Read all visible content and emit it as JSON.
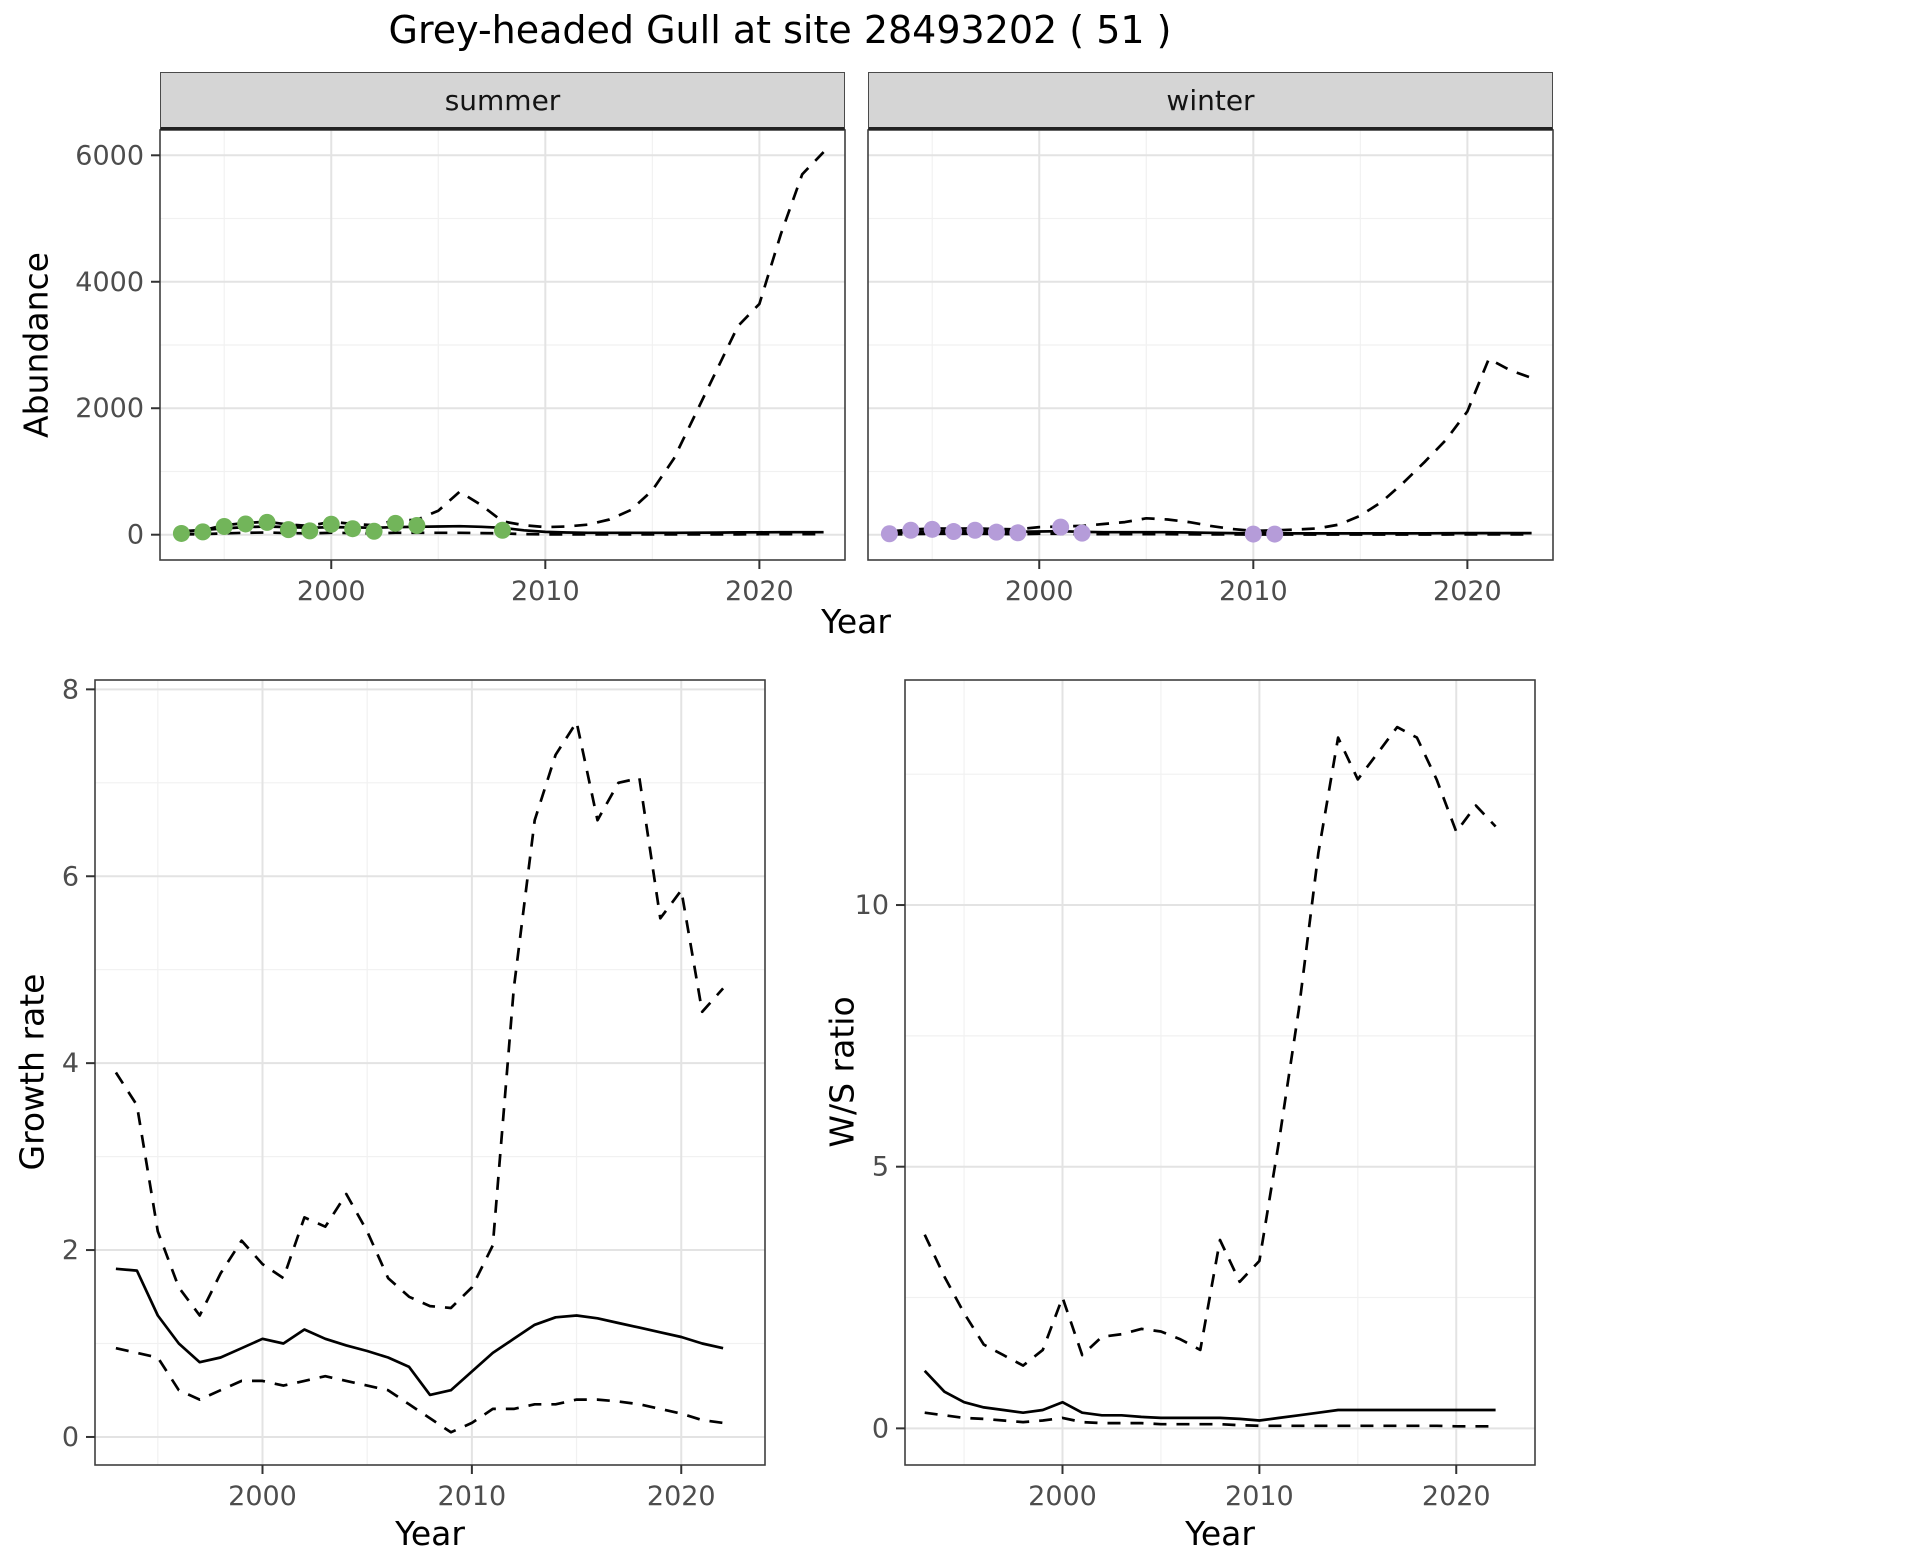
{
  "title": "Grey-headed Gull at site 28493202 ( 51 )",
  "colors": {
    "panel_bg": "#ffffff",
    "grid_major": "#e3e3e3",
    "grid_minor": "#f1f1f1",
    "panel_border": "#3f3f3f",
    "tick": "#333333",
    "tick_label": "#4d4d4d",
    "line": "#000000",
    "summer_points": "#72b55a",
    "winter_points": "#b59cd9",
    "strip_bg": "#d5d5d5"
  },
  "chart_data": [
    {
      "id": "abundance-summer",
      "type": "line",
      "facet_label": "summer",
      "xlabel": "Year",
      "ylabel": "Abundance",
      "xlim": [
        1992,
        2024
      ],
      "ylim": [
        -400,
        6400
      ],
      "xticks": [
        2000,
        2010,
        2020
      ],
      "yticks": [
        0,
        2000,
        4000,
        6000
      ],
      "grid": true,
      "legend": "none",
      "series": [
        {
          "name": "upper_ci",
          "style": "dashed",
          "color": "#000000",
          "x": [
            1993,
            1994,
            1995,
            1996,
            1997,
            1998,
            1999,
            2000,
            2001,
            2002,
            2003,
            2004,
            2005,
            2006,
            2007,
            2008,
            2009,
            2010,
            2011,
            2012,
            2013,
            2014,
            2015,
            2016,
            2017,
            2018,
            2019,
            2020,
            2021,
            2022,
            2023
          ],
          "y": [
            45,
            70,
            150,
            185,
            205,
            160,
            140,
            205,
            170,
            150,
            225,
            235,
            380,
            680,
            470,
            210,
            150,
            120,
            130,
            160,
            240,
            390,
            700,
            1200,
            1900,
            2600,
            3300,
            3650,
            4750,
            5700,
            6050
          ]
        },
        {
          "name": "lower_ci",
          "style": "dashed",
          "color": "#000000",
          "x": [
            1993,
            1994,
            1995,
            1996,
            1997,
            1998,
            1999,
            2000,
            2001,
            2002,
            2003,
            2004,
            2005,
            2006,
            2007,
            2008,
            2009,
            2010,
            2011,
            2012,
            2013,
            2014,
            2015,
            2016,
            2017,
            2018,
            2019,
            2020,
            2021,
            2022,
            2023
          ],
          "y": [
            5,
            10,
            20,
            30,
            35,
            25,
            20,
            30,
            25,
            20,
            30,
            30,
            30,
            30,
            25,
            20,
            10,
            5,
            5,
            5,
            5,
            5,
            5,
            5,
            5,
            5,
            5,
            8,
            10,
            10,
            10
          ]
        },
        {
          "name": "median_estimate",
          "style": "solid",
          "color": "#000000",
          "x": [
            1993,
            1994,
            1995,
            1996,
            1997,
            1998,
            1999,
            2000,
            2001,
            2002,
            2003,
            2004,
            2005,
            2006,
            2007,
            2008,
            2009,
            2010,
            2011,
            2012,
            2013,
            2014,
            2015,
            2016,
            2017,
            2018,
            2019,
            2020,
            2021,
            2022,
            2023
          ],
          "y": [
            55,
            75,
            100,
            120,
            130,
            120,
            110,
            120,
            115,
            110,
            120,
            125,
            130,
            135,
            125,
            110,
            70,
            45,
            35,
            30,
            30,
            30,
            30,
            30,
            32,
            34,
            36,
            38,
            40,
            40,
            40
          ]
        },
        {
          "name": "observations",
          "style": "points",
          "color": "#72b55a",
          "x": [
            1993,
            1994,
            1995,
            1996,
            1997,
            1998,
            1999,
            2000,
            2001,
            2002,
            2003,
            2004,
            2008
          ],
          "y": [
            20,
            45,
            130,
            170,
            195,
            80,
            60,
            165,
            95,
            55,
            180,
            145,
            70
          ]
        }
      ]
    },
    {
      "id": "abundance-winter",
      "type": "line",
      "facet_label": "winter",
      "xlabel": "Year",
      "ylabel": "Abundance",
      "xlim": [
        1992,
        2024
      ],
      "ylim": [
        -400,
        6400
      ],
      "xticks": [
        2000,
        2010,
        2020
      ],
      "yticks": [
        0,
        2000,
        4000,
        6000
      ],
      "grid": true,
      "legend": "none",
      "series": [
        {
          "name": "upper_ci",
          "style": "dashed",
          "color": "#000000",
          "x": [
            1993,
            1994,
            1995,
            1996,
            1997,
            1998,
            1999,
            2000,
            2001,
            2002,
            2003,
            2004,
            2005,
            2006,
            2007,
            2008,
            2009,
            2010,
            2011,
            2012,
            2013,
            2014,
            2015,
            2016,
            2017,
            2018,
            2019,
            2020,
            2021,
            2022,
            2023
          ],
          "y": [
            50,
            80,
            100,
            95,
            100,
            90,
            85,
            120,
            130,
            140,
            170,
            200,
            260,
            240,
            200,
            140,
            90,
            60,
            70,
            80,
            100,
            160,
            300,
            520,
            820,
            1150,
            1500,
            1950,
            2780,
            2600,
            2480
          ]
        },
        {
          "name": "lower_ci",
          "style": "dashed",
          "color": "#000000",
          "x": [
            1993,
            1994,
            1995,
            1996,
            1997,
            1998,
            1999,
            2000,
            2001,
            2002,
            2003,
            2004,
            2005,
            2006,
            2007,
            2008,
            2009,
            2010,
            2011,
            2012,
            2013,
            2014,
            2015,
            2016,
            2017,
            2018,
            2019,
            2020,
            2021,
            2022,
            2023
          ],
          "y": [
            5,
            10,
            15,
            15,
            15,
            12,
            10,
            15,
            15,
            10,
            8,
            8,
            8,
            8,
            6,
            5,
            5,
            3,
            3,
            3,
            3,
            3,
            3,
            3,
            3,
            3,
            4,
            5,
            5,
            5,
            5
          ]
        },
        {
          "name": "median_estimate",
          "style": "solid",
          "color": "#000000",
          "x": [
            1993,
            1994,
            1995,
            1996,
            1997,
            1998,
            1999,
            2000,
            2001,
            2002,
            2003,
            2004,
            2005,
            2006,
            2007,
            2008,
            2009,
            2010,
            2011,
            2012,
            2013,
            2014,
            2015,
            2016,
            2017,
            2018,
            2019,
            2020,
            2021,
            2022,
            2023
          ],
          "y": [
            30,
            45,
            55,
            55,
            55,
            50,
            45,
            50,
            55,
            45,
            40,
            40,
            40,
            40,
            35,
            30,
            25,
            20,
            20,
            20,
            20,
            20,
            20,
            20,
            20,
            22,
            24,
            25,
            26,
            26,
            26
          ]
        },
        {
          "name": "observations",
          "style": "points",
          "color": "#b59cd9",
          "x": [
            1993,
            1994,
            1995,
            1996,
            1997,
            1998,
            1999,
            2001,
            2002,
            2010,
            2011
          ],
          "y": [
            15,
            70,
            85,
            50,
            70,
            40,
            30,
            120,
            25,
            10,
            10
          ]
        }
      ]
    },
    {
      "id": "growth-rate",
      "type": "line",
      "xlabel": "Year",
      "ylabel": "Growth rate",
      "xlim": [
        1992,
        2024
      ],
      "ylim": [
        -0.3,
        8.1
      ],
      "xticks": [
        2000,
        2010,
        2020
      ],
      "yticks": [
        0,
        2,
        4,
        6,
        8
      ],
      "grid": true,
      "legend": "none",
      "series": [
        {
          "name": "upper_ci",
          "style": "dashed",
          "color": "#000000",
          "x": [
            1993,
            1994,
            1995,
            1996,
            1997,
            1998,
            1999,
            2000,
            2001,
            2002,
            2003,
            2004,
            2005,
            2006,
            2007,
            2008,
            2009,
            2010,
            2011,
            2012,
            2013,
            2014,
            2015,
            2016,
            2017,
            2018,
            2019,
            2020,
            2021,
            2022
          ],
          "y": [
            3.9,
            3.55,
            2.2,
            1.6,
            1.3,
            1.75,
            2.1,
            1.85,
            1.7,
            2.35,
            2.25,
            2.6,
            2.2,
            1.7,
            1.5,
            1.4,
            1.38,
            1.6,
            2.05,
            4.8,
            6.6,
            7.3,
            7.65,
            6.6,
            7.0,
            7.05,
            5.55,
            5.85,
            4.55,
            4.8
          ]
        },
        {
          "name": "lower_ci",
          "style": "dashed",
          "color": "#000000",
          "x": [
            1993,
            1994,
            1995,
            1996,
            1997,
            1998,
            1999,
            2000,
            2001,
            2002,
            2003,
            2004,
            2005,
            2006,
            2007,
            2008,
            2009,
            2010,
            2011,
            2012,
            2013,
            2014,
            2015,
            2016,
            2017,
            2018,
            2019,
            2020,
            2021,
            2022
          ],
          "y": [
            0.95,
            0.9,
            0.85,
            0.5,
            0.4,
            0.5,
            0.6,
            0.6,
            0.55,
            0.6,
            0.65,
            0.6,
            0.55,
            0.5,
            0.35,
            0.2,
            0.05,
            0.15,
            0.3,
            0.3,
            0.35,
            0.35,
            0.4,
            0.4,
            0.38,
            0.35,
            0.3,
            0.25,
            0.18,
            0.15
          ]
        },
        {
          "name": "median_estimate",
          "style": "solid",
          "color": "#000000",
          "x": [
            1993,
            1994,
            1995,
            1996,
            1997,
            1998,
            1999,
            2000,
            2001,
            2002,
            2003,
            2004,
            2005,
            2006,
            2007,
            2008,
            2009,
            2010,
            2011,
            2012,
            2013,
            2014,
            2015,
            2016,
            2017,
            2018,
            2019,
            2020,
            2021,
            2022
          ],
          "y": [
            1.8,
            1.78,
            1.3,
            1.0,
            0.8,
            0.85,
            0.95,
            1.05,
            1.0,
            1.15,
            1.05,
            0.98,
            0.92,
            0.85,
            0.75,
            0.45,
            0.5,
            0.7,
            0.9,
            1.05,
            1.2,
            1.28,
            1.3,
            1.27,
            1.22,
            1.17,
            1.12,
            1.07,
            1.0,
            0.95
          ]
        }
      ]
    },
    {
      "id": "ws-ratio",
      "type": "line",
      "xlabel": "Year",
      "ylabel": "W/S ratio",
      "xlim": [
        1992,
        2024
      ],
      "ylim": [
        -0.7,
        14.3
      ],
      "xticks": [
        2000,
        2010,
        2020
      ],
      "yticks": [
        0,
        5,
        10
      ],
      "grid": true,
      "legend": "none",
      "series": [
        {
          "name": "upper_ci",
          "style": "dashed",
          "color": "#000000",
          "x": [
            1993,
            1994,
            1995,
            1996,
            1997,
            1998,
            1999,
            2000,
            2001,
            2002,
            2003,
            2004,
            2005,
            2006,
            2007,
            2008,
            2009,
            2010,
            2011,
            2012,
            2013,
            2014,
            2015,
            2016,
            2017,
            2018,
            2019,
            2020,
            2021,
            2022
          ],
          "y": [
            3.7,
            2.9,
            2.2,
            1.6,
            1.4,
            1.2,
            1.5,
            2.5,
            1.4,
            1.75,
            1.8,
            1.9,
            1.85,
            1.7,
            1.5,
            3.6,
            2.8,
            3.2,
            5.5,
            8.0,
            11.0,
            13.2,
            12.4,
            12.9,
            13.4,
            13.2,
            12.4,
            11.4,
            11.9,
            11.5
          ]
        },
        {
          "name": "lower_ci",
          "style": "dashed",
          "color": "#000000",
          "x": [
            1993,
            1994,
            1995,
            1996,
            1997,
            1998,
            1999,
            2000,
            2001,
            2002,
            2003,
            2004,
            2005,
            2006,
            2007,
            2008,
            2009,
            2010,
            2011,
            2012,
            2013,
            2014,
            2015,
            2016,
            2017,
            2018,
            2019,
            2020,
            2021,
            2022
          ],
          "y": [
            0.3,
            0.25,
            0.2,
            0.18,
            0.15,
            0.12,
            0.15,
            0.2,
            0.12,
            0.1,
            0.1,
            0.1,
            0.08,
            0.08,
            0.08,
            0.08,
            0.06,
            0.05,
            0.05,
            0.05,
            0.05,
            0.05,
            0.05,
            0.05,
            0.05,
            0.05,
            0.05,
            0.04,
            0.04,
            0.04
          ]
        },
        {
          "name": "median_estimate",
          "style": "solid",
          "color": "#000000",
          "x": [
            1993,
            1994,
            1995,
            1996,
            1997,
            1998,
            1999,
            2000,
            2001,
            2002,
            2003,
            2004,
            2005,
            2006,
            2007,
            2008,
            2009,
            2010,
            2011,
            2012,
            2013,
            2014,
            2015,
            2016,
            2017,
            2018,
            2019,
            2020,
            2021,
            2022
          ],
          "y": [
            1.1,
            0.7,
            0.5,
            0.4,
            0.35,
            0.3,
            0.35,
            0.5,
            0.3,
            0.25,
            0.25,
            0.22,
            0.2,
            0.2,
            0.2,
            0.2,
            0.18,
            0.15,
            0.2,
            0.25,
            0.3,
            0.35,
            0.35,
            0.35,
            0.35,
            0.35,
            0.35,
            0.35,
            0.35,
            0.35
          ]
        }
      ]
    }
  ]
}
